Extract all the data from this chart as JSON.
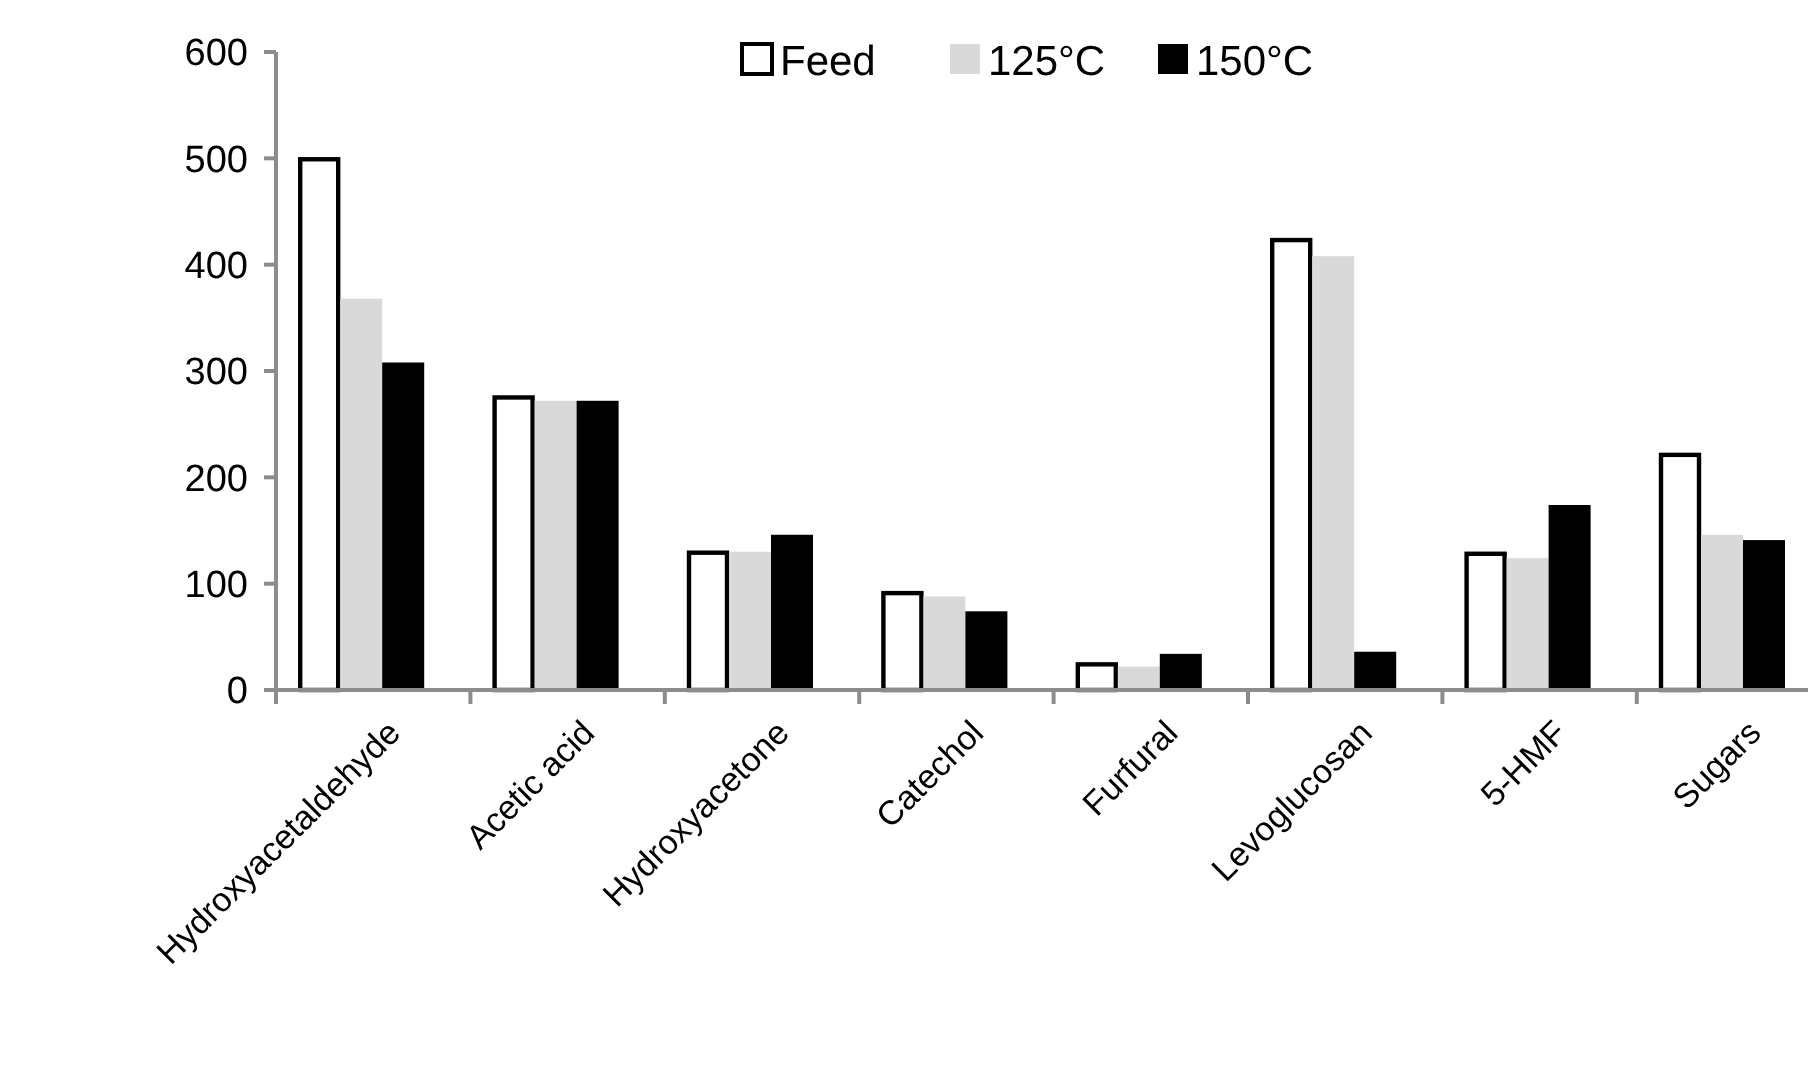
{
  "chart_data": {
    "type": "bar",
    "categories": [
      "Hydroxyacetaldehyde",
      "Acetic acid",
      "Hydroxyacetone",
      "Catechol",
      "Furfural",
      "Levoglucosan",
      "5-HMF",
      "Sugars"
    ],
    "series": [
      {
        "name": "Feed",
        "color": "#ffffff",
        "values": [
          501,
          277,
          131,
          93,
          26,
          425,
          130,
          223
        ]
      },
      {
        "name": "125°C",
        "color": "#d9d9d9",
        "values": [
          368,
          272,
          130,
          88,
          22,
          408,
          124,
          146
        ]
      },
      {
        "name": "150°C",
        "color": "#000000",
        "values": [
          308,
          272,
          146,
          74,
          34,
          36,
          174,
          141
        ]
      }
    ],
    "ylim": [
      0,
      600
    ],
    "yticks": [
      0,
      100,
      200,
      300,
      400,
      500,
      600
    ],
    "grid": false,
    "legend": "top"
  }
}
